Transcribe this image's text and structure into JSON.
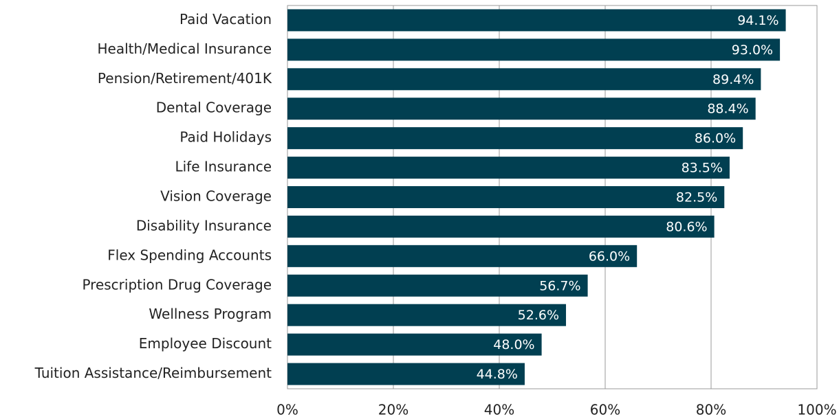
{
  "chart_data": {
    "type": "barh",
    "categories": [
      "Paid Vacation",
      "Health/Medical Insurance",
      "Pension/Retirement/401K",
      "Dental Coverage",
      "Paid Holidays",
      "Life Insurance",
      "Vision Coverage",
      "Disability Insurance",
      "Flex Spending Accounts",
      "Prescription Drug Coverage",
      "Wellness Program",
      "Employee Discount",
      "Tuition Assistance/Reimbursement"
    ],
    "values": [
      94.1,
      93.0,
      89.4,
      88.4,
      86.0,
      83.5,
      82.5,
      80.6,
      66.0,
      56.7,
      52.6,
      48.0,
      44.8
    ],
    "value_labels": [
      "94.1%",
      "93.0%",
      "89.4%",
      "88.4%",
      "86.0%",
      "83.5%",
      "82.5%",
      "80.6%",
      "66.0%",
      "56.7%",
      "52.6%",
      "48.0%",
      "44.8%"
    ],
    "color": "#013f51",
    "xlim": [
      0,
      100
    ],
    "xticks": [
      {
        "value": 0,
        "label": "0%"
      },
      {
        "value": 20,
        "label": "20%"
      },
      {
        "value": 40,
        "label": "40%"
      },
      {
        "value": 60,
        "label": "60%"
      },
      {
        "value": 80,
        "label": "80%"
      },
      {
        "value": 100,
        "label": "100%"
      }
    ],
    "grid": true
  }
}
